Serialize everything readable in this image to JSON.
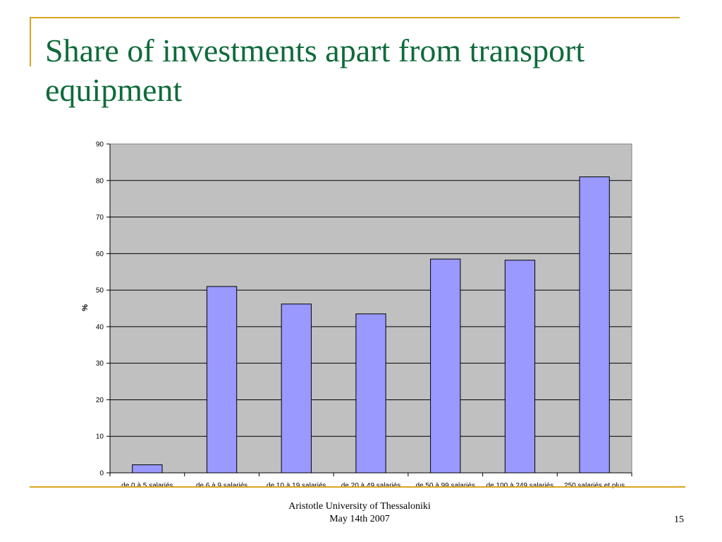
{
  "slide": {
    "title": "Share of investments apart from transport equipment",
    "footer_line1": "Aristotle University of Thessaloniki",
    "footer_line2": "May 14th 2007",
    "page_number": "15"
  },
  "colors": {
    "accent_line": "#d9a520",
    "title": "#0f6b3a",
    "plot_background": "#c0c0c0",
    "bar_fill": "#9999ff",
    "bar_stroke": "#000000"
  },
  "chart_data": {
    "type": "bar",
    "categories": [
      "de 0 à 5 salariés",
      "de 6 à 9 salariés",
      "de 10 à 19 salariés",
      "de 20 à 49 salariés",
      "de 50 à 99 salariés",
      "de 100 à 249 salariés",
      "250 salariés et plus"
    ],
    "values": [
      2.2,
      51,
      46.2,
      43.5,
      58.5,
      58.2,
      81
    ],
    "ylabel": "%",
    "ylim": [
      0,
      90
    ],
    "yticks": [
      0,
      10,
      20,
      30,
      40,
      50,
      60,
      70,
      80,
      90
    ],
    "grid": true,
    "legend": "none"
  }
}
